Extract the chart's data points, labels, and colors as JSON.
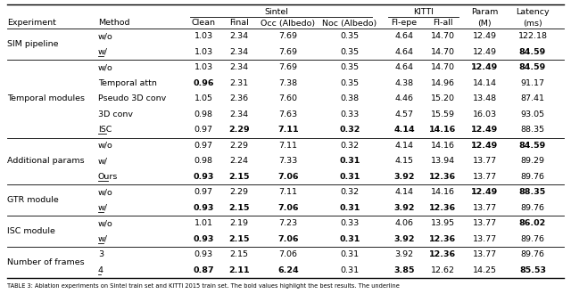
{
  "sections": [
    {
      "experiment": "SIM pipeline",
      "rows": [
        {
          "method": "w/o",
          "underline": false,
          "values": [
            "1.03",
            "2.34",
            "7.69",
            "0.35",
            "4.64",
            "14.70",
            "12.49",
            "122.18"
          ],
          "bold": [
            false,
            false,
            false,
            false,
            false,
            false,
            false,
            false
          ]
        },
        {
          "method": "w/",
          "underline": true,
          "values": [
            "1.03",
            "2.34",
            "7.69",
            "0.35",
            "4.64",
            "14.70",
            "12.49",
            "84.59"
          ],
          "bold": [
            false,
            false,
            false,
            false,
            false,
            false,
            false,
            true
          ]
        }
      ]
    },
    {
      "experiment": "Temporal modules",
      "rows": [
        {
          "method": "w/o",
          "underline": false,
          "values": [
            "1.03",
            "2.34",
            "7.69",
            "0.35",
            "4.64",
            "14.70",
            "12.49",
            "84.59"
          ],
          "bold": [
            false,
            false,
            false,
            false,
            false,
            false,
            true,
            true
          ]
        },
        {
          "method": "Temporal attn",
          "underline": false,
          "values": [
            "0.96",
            "2.31",
            "7.38",
            "0.35",
            "4.38",
            "14.96",
            "14.14",
            "91.17"
          ],
          "bold": [
            true,
            false,
            false,
            false,
            false,
            false,
            false,
            false
          ]
        },
        {
          "method": "Pseudo 3D conv",
          "underline": false,
          "values": [
            "1.05",
            "2.36",
            "7.60",
            "0.38",
            "4.46",
            "15.20",
            "13.48",
            "87.41"
          ],
          "bold": [
            false,
            false,
            false,
            false,
            false,
            false,
            false,
            false
          ]
        },
        {
          "method": "3D conv",
          "underline": false,
          "values": [
            "0.98",
            "2.34",
            "7.63",
            "0.33",
            "4.57",
            "15.59",
            "16.03",
            "93.05"
          ],
          "bold": [
            false,
            false,
            false,
            false,
            false,
            false,
            false,
            false
          ]
        },
        {
          "method": "ISC",
          "underline": true,
          "values": [
            "0.97",
            "2.29",
            "7.11",
            "0.32",
            "4.14",
            "14.16",
            "12.49",
            "88.35"
          ],
          "bold": [
            false,
            true,
            true,
            true,
            true,
            true,
            true,
            false
          ]
        }
      ]
    },
    {
      "experiment": "Additional params",
      "rows": [
        {
          "method": "w/o",
          "underline": false,
          "values": [
            "0.97",
            "2.29",
            "7.11",
            "0.32",
            "4.14",
            "14.16",
            "12.49",
            "84.59"
          ],
          "bold": [
            false,
            false,
            false,
            false,
            false,
            false,
            true,
            true
          ]
        },
        {
          "method": "w/",
          "underline": false,
          "values": [
            "0.98",
            "2.24",
            "7.33",
            "0.31",
            "4.15",
            "13.94",
            "13.77",
            "89.29"
          ],
          "bold": [
            false,
            false,
            false,
            true,
            false,
            false,
            false,
            false
          ]
        },
        {
          "method": "Ours",
          "underline": true,
          "values": [
            "0.93",
            "2.15",
            "7.06",
            "0.31",
            "3.92",
            "12.36",
            "13.77",
            "89.76"
          ],
          "bold": [
            true,
            true,
            true,
            true,
            true,
            true,
            false,
            false
          ]
        }
      ]
    },
    {
      "experiment": "GTR module",
      "rows": [
        {
          "method": "w/o",
          "underline": false,
          "values": [
            "0.97",
            "2.29",
            "7.11",
            "0.32",
            "4.14",
            "14.16",
            "12.49",
            "88.35"
          ],
          "bold": [
            false,
            false,
            false,
            false,
            false,
            false,
            true,
            true
          ]
        },
        {
          "method": "w/",
          "underline": true,
          "values": [
            "0.93",
            "2.15",
            "7.06",
            "0.31",
            "3.92",
            "12.36",
            "13.77",
            "89.76"
          ],
          "bold": [
            true,
            true,
            true,
            true,
            true,
            true,
            false,
            false
          ]
        }
      ]
    },
    {
      "experiment": "ISC module",
      "rows": [
        {
          "method": "w/o",
          "underline": false,
          "values": [
            "1.01",
            "2.19",
            "7.23",
            "0.33",
            "4.06",
            "13.95",
            "13.77",
            "86.02"
          ],
          "bold": [
            false,
            false,
            false,
            false,
            false,
            false,
            false,
            true
          ]
        },
        {
          "method": "w/",
          "underline": true,
          "values": [
            "0.93",
            "2.15",
            "7.06",
            "0.31",
            "3.92",
            "12.36",
            "13.77",
            "89.76"
          ],
          "bold": [
            true,
            true,
            true,
            true,
            true,
            true,
            false,
            false
          ]
        }
      ]
    },
    {
      "experiment": "Number of frames",
      "rows": [
        {
          "method": "3",
          "underline": false,
          "values": [
            "0.93",
            "2.15",
            "7.06",
            "0.31",
            "3.92",
            "12.36",
            "13.77",
            "89.76"
          ],
          "bold": [
            false,
            false,
            false,
            false,
            false,
            true,
            false,
            false
          ]
        },
        {
          "method": "4",
          "underline": true,
          "values": [
            "0.87",
            "2.11",
            "6.24",
            "0.31",
            "3.85",
            "12.62",
            "14.25",
            "85.53"
          ],
          "bold": [
            true,
            true,
            true,
            false,
            true,
            false,
            false,
            true
          ]
        }
      ]
    }
  ],
  "col_keys": [
    "Clean",
    "Final",
    "Occ (Albedo)",
    "Noc (Albedo)",
    "Fl-epe",
    "Fl-all",
    "(M)",
    "(ms)"
  ],
  "col_header2": [
    "Clean",
    "Final",
    "Occ (Albedo)",
    "Noc (Albedo)",
    "Fl-epe",
    "Fl-all",
    "(M)",
    "(ms)"
  ],
  "font_size": 6.8,
  "caption": "TABLE 3: Ablation experiments on Sintel train set and KITTI 2015 train set. The bold values highlight the best results. The underline"
}
